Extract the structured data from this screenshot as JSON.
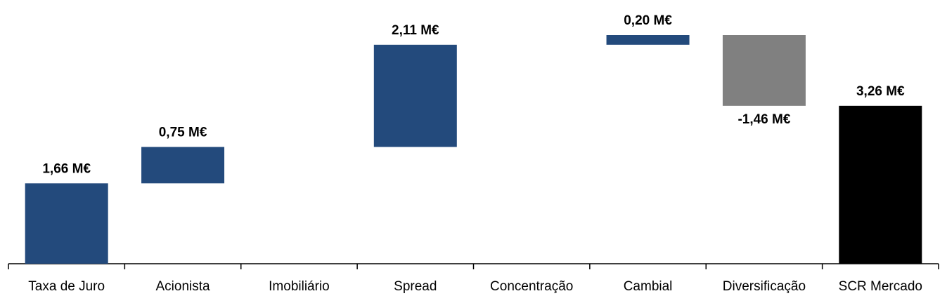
{
  "chart_data": {
    "type": "waterfall",
    "categories": [
      "Taxa de Juro",
      "Acionista",
      "Imobiliário",
      "Spread",
      "Concentração",
      "Cambial",
      "Diversificação",
      "SCR Mercado"
    ],
    "values": [
      1.66,
      0.75,
      0,
      2.11,
      0,
      0.2,
      -1.46,
      3.26
    ],
    "value_labels": [
      "1,66 M€",
      "0,75 M€",
      null,
      "2,11 M€",
      null,
      "0,20 M€",
      "-1,46 M€",
      "3,26 M€"
    ],
    "is_total": [
      false,
      false,
      false,
      false,
      false,
      false,
      false,
      true
    ],
    "color": "#234a7c",
    "negative_color": "#808080",
    "total_color": "#000000"
  }
}
